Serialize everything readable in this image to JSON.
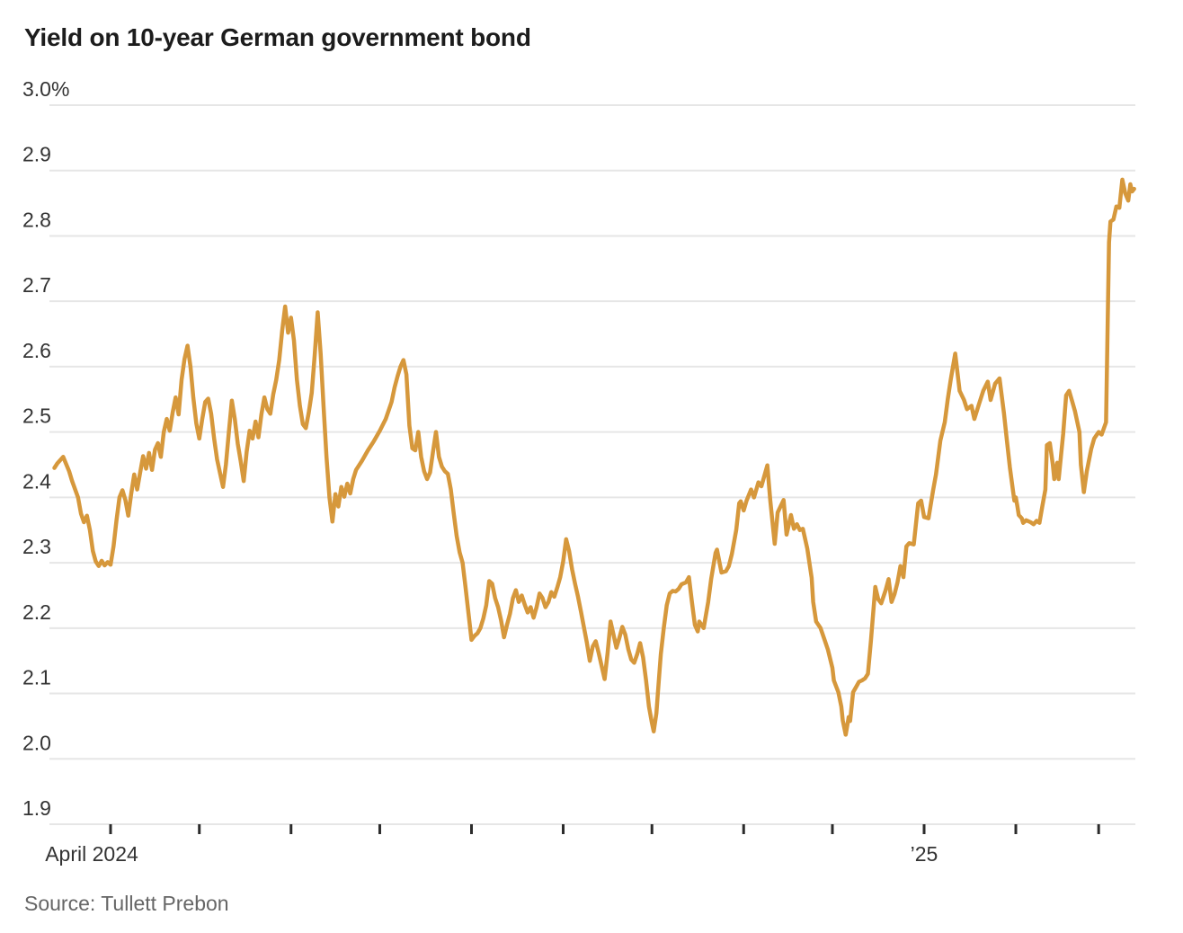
{
  "header": {
    "title": "Yield on 10-year German government bond"
  },
  "source": {
    "label": "Source: Tullett Prebon"
  },
  "chart_data": {
    "type": "line",
    "title": "Yield on 10-year German government bond",
    "series_name": "10-year German government bond yield",
    "unit": "%",
    "line_color": "#D6983C",
    "grid_color": "#E6E6E6",
    "tick_color": "#2b2b2b",
    "start_date": "2024-03-13",
    "end_date": "2025-03-13",
    "ylim": [
      1.9,
      3.0
    ],
    "grid": true,
    "legend_position": "none",
    "y_ticks": [
      {
        "value": 3.0,
        "label": "3.0%"
      },
      {
        "value": 2.9,
        "label": "2.9"
      },
      {
        "value": 2.8,
        "label": "2.8"
      },
      {
        "value": 2.7,
        "label": "2.7"
      },
      {
        "value": 2.6,
        "label": "2.6"
      },
      {
        "value": 2.5,
        "label": "2.5"
      },
      {
        "value": 2.4,
        "label": "2.4"
      },
      {
        "value": 2.3,
        "label": "2.3"
      },
      {
        "value": 2.2,
        "label": "2.2"
      },
      {
        "value": 2.1,
        "label": "2.1"
      },
      {
        "value": 2.0,
        "label": "2.0"
      },
      {
        "value": 1.9,
        "label": "1.9"
      }
    ],
    "x_ticks": [
      {
        "day": 19,
        "label": "April 2024"
      },
      {
        "day": 49,
        "label": ""
      },
      {
        "day": 80,
        "label": ""
      },
      {
        "day": 110,
        "label": ""
      },
      {
        "day": 141,
        "label": ""
      },
      {
        "day": 172,
        "label": ""
      },
      {
        "day": 202,
        "label": ""
      },
      {
        "day": 233,
        "label": ""
      },
      {
        "day": 263,
        "label": ""
      },
      {
        "day": 294,
        "label": "’25"
      },
      {
        "day": 325,
        "label": ""
      },
      {
        "day": 353,
        "label": ""
      }
    ],
    "points_format": "[days since 2024-03-13, yield %]",
    "points": [
      [
        0,
        2.445
      ],
      [
        1,
        2.452
      ],
      [
        3,
        2.462
      ],
      [
        5,
        2.44
      ],
      [
        6,
        2.425
      ],
      [
        8,
        2.4
      ],
      [
        9,
        2.375
      ],
      [
        10,
        2.362
      ],
      [
        11,
        2.372
      ],
      [
        12,
        2.35
      ],
      [
        13,
        2.318
      ],
      [
        14,
        2.302
      ],
      [
        15,
        2.295
      ],
      [
        16,
        2.303
      ],
      [
        17,
        2.296
      ],
      [
        18,
        2.301
      ],
      [
        19,
        2.297
      ],
      [
        20,
        2.325
      ],
      [
        21,
        2.365
      ],
      [
        22,
        2.4
      ],
      [
        23,
        2.411
      ],
      [
        24,
        2.396
      ],
      [
        25,
        2.372
      ],
      [
        26,
        2.406
      ],
      [
        27,
        2.435
      ],
      [
        28,
        2.412
      ],
      [
        29,
        2.438
      ],
      [
        30,
        2.463
      ],
      [
        31,
        2.444
      ],
      [
        32,
        2.468
      ],
      [
        33,
        2.442
      ],
      [
        34,
        2.473
      ],
      [
        35,
        2.483
      ],
      [
        36,
        2.462
      ],
      [
        37,
        2.5
      ],
      [
        38,
        2.52
      ],
      [
        39,
        2.502
      ],
      [
        40,
        2.53
      ],
      [
        41,
        2.553
      ],
      [
        42,
        2.527
      ],
      [
        43,
        2.58
      ],
      [
        44,
        2.612
      ],
      [
        45,
        2.632
      ],
      [
        46,
        2.6
      ],
      [
        47,
        2.552
      ],
      [
        48,
        2.513
      ],
      [
        49,
        2.49
      ],
      [
        50,
        2.52
      ],
      [
        51,
        2.546
      ],
      [
        52,
        2.551
      ],
      [
        53,
        2.528
      ],
      [
        54,
        2.49
      ],
      [
        55,
        2.458
      ],
      [
        56,
        2.437
      ],
      [
        57,
        2.416
      ],
      [
        58,
        2.45
      ],
      [
        59,
        2.5
      ],
      [
        60,
        2.548
      ],
      [
        61,
        2.52
      ],
      [
        62,
        2.482
      ],
      [
        63,
        2.455
      ],
      [
        64,
        2.425
      ],
      [
        65,
        2.47
      ],
      [
        66,
        2.502
      ],
      [
        67,
        2.49
      ],
      [
        68,
        2.516
      ],
      [
        69,
        2.492
      ],
      [
        70,
        2.527
      ],
      [
        71,
        2.553
      ],
      [
        72,
        2.535
      ],
      [
        73,
        2.528
      ],
      [
        74,
        2.558
      ],
      [
        75,
        2.58
      ],
      [
        76,
        2.61
      ],
      [
        77,
        2.655
      ],
      [
        78,
        2.692
      ],
      [
        79,
        2.652
      ],
      [
        80,
        2.675
      ],
      [
        81,
        2.64
      ],
      [
        82,
        2.58
      ],
      [
        83,
        2.54
      ],
      [
        84,
        2.512
      ],
      [
        85,
        2.506
      ],
      [
        86,
        2.53
      ],
      [
        87,
        2.56
      ],
      [
        88,
        2.618
      ],
      [
        89,
        2.683
      ],
      [
        90,
        2.62
      ],
      [
        91,
        2.54
      ],
      [
        92,
        2.462
      ],
      [
        93,
        2.4
      ],
      [
        94,
        2.363
      ],
      [
        95,
        2.405
      ],
      [
        96,
        2.386
      ],
      [
        97,
        2.416
      ],
      [
        98,
        2.401
      ],
      [
        99,
        2.421
      ],
      [
        100,
        2.406
      ],
      [
        101,
        2.428
      ],
      [
        102,
        2.442
      ],
      [
        104,
        2.456
      ],
      [
        106,
        2.472
      ],
      [
        108,
        2.486
      ],
      [
        110,
        2.502
      ],
      [
        112,
        2.52
      ],
      [
        114,
        2.546
      ],
      [
        115,
        2.568
      ],
      [
        116,
        2.585
      ],
      [
        117,
        2.6
      ],
      [
        118,
        2.61
      ],
      [
        119,
        2.588
      ],
      [
        120,
        2.51
      ],
      [
        121,
        2.475
      ],
      [
        122,
        2.472
      ],
      [
        123,
        2.5
      ],
      [
        124,
        2.462
      ],
      [
        125,
        2.44
      ],
      [
        126,
        2.428
      ],
      [
        127,
        2.438
      ],
      [
        128,
        2.47
      ],
      [
        129,
        2.5
      ],
      [
        130,
        2.462
      ],
      [
        131,
        2.447
      ],
      [
        132,
        2.44
      ],
      [
        133,
        2.436
      ],
      [
        134,
        2.412
      ],
      [
        135,
        2.376
      ],
      [
        136,
        2.341
      ],
      [
        137,
        2.316
      ],
      [
        138,
        2.3
      ],
      [
        139,
        2.262
      ],
      [
        140,
        2.222
      ],
      [
        141,
        2.182
      ],
      [
        142,
        2.188
      ],
      [
        143,
        2.192
      ],
      [
        144,
        2.2
      ],
      [
        145,
        2.215
      ],
      [
        146,
        2.235
      ],
      [
        147,
        2.272
      ],
      [
        148,
        2.268
      ],
      [
        149,
        2.246
      ],
      [
        150,
        2.232
      ],
      [
        151,
        2.212
      ],
      [
        152,
        2.186
      ],
      [
        153,
        2.205
      ],
      [
        154,
        2.222
      ],
      [
        155,
        2.246
      ],
      [
        156,
        2.258
      ],
      [
        157,
        2.24
      ],
      [
        158,
        2.25
      ],
      [
        159,
        2.236
      ],
      [
        160,
        2.224
      ],
      [
        161,
        2.232
      ],
      [
        162,
        2.216
      ],
      [
        163,
        2.232
      ],
      [
        164,
        2.253
      ],
      [
        165,
        2.246
      ],
      [
        166,
        2.232
      ],
      [
        167,
        2.24
      ],
      [
        168,
        2.255
      ],
      [
        169,
        2.248
      ],
      [
        170,
        2.262
      ],
      [
        171,
        2.278
      ],
      [
        172,
        2.302
      ],
      [
        173,
        2.336
      ],
      [
        174,
        2.318
      ],
      [
        175,
        2.29
      ],
      [
        176,
        2.268
      ],
      [
        177,
        2.248
      ],
      [
        178,
        2.225
      ],
      [
        179,
        2.202
      ],
      [
        180,
        2.178
      ],
      [
        181,
        2.15
      ],
      [
        182,
        2.172
      ],
      [
        183,
        2.18
      ],
      [
        184,
        2.162
      ],
      [
        185,
        2.142
      ],
      [
        186,
        2.122
      ],
      [
        187,
        2.162
      ],
      [
        188,
        2.21
      ],
      [
        189,
        2.19
      ],
      [
        190,
        2.17
      ],
      [
        191,
        2.185
      ],
      [
        192,
        2.202
      ],
      [
        193,
        2.19
      ],
      [
        194,
        2.168
      ],
      [
        195,
        2.152
      ],
      [
        196,
        2.147
      ],
      [
        197,
        2.16
      ],
      [
        198,
        2.177
      ],
      [
        199,
        2.155
      ],
      [
        200,
        2.12
      ],
      [
        201,
        2.08
      ],
      [
        202,
        2.055
      ],
      [
        202.6,
        2.042
      ],
      [
        203.5,
        2.07
      ],
      [
        204,
        2.1
      ],
      [
        205,
        2.16
      ],
      [
        206,
        2.2
      ],
      [
        207,
        2.235
      ],
      [
        208,
        2.253
      ],
      [
        209,
        2.257
      ],
      [
        210,
        2.256
      ],
      [
        211,
        2.26
      ],
      [
        212,
        2.267
      ],
      [
        213.5,
        2.27
      ],
      [
        214.5,
        2.278
      ],
      [
        215.5,
        2.24
      ],
      [
        216.5,
        2.205
      ],
      [
        217.5,
        2.195
      ],
      [
        218,
        2.21
      ],
      [
        219.5,
        2.2
      ],
      [
        221,
        2.24
      ],
      [
        222,
        2.275
      ],
      [
        223.5,
        2.315
      ],
      [
        224,
        2.32
      ],
      [
        225.5,
        2.285
      ],
      [
        227,
        2.287
      ],
      [
        228,
        2.295
      ],
      [
        229,
        2.313
      ],
      [
        230.5,
        2.35
      ],
      [
        231.5,
        2.391
      ],
      [
        232,
        2.394
      ],
      [
        233,
        2.38
      ],
      [
        234,
        2.395
      ],
      [
        235.5,
        2.412
      ],
      [
        236.5,
        2.4
      ],
      [
        238,
        2.423
      ],
      [
        239,
        2.417
      ],
      [
        241,
        2.449
      ],
      [
        242,
        2.395
      ],
      [
        243.5,
        2.329
      ],
      [
        244.5,
        2.377
      ],
      [
        246.5,
        2.396
      ],
      [
        247.5,
        2.343
      ],
      [
        249,
        2.373
      ],
      [
        250,
        2.352
      ],
      [
        251,
        2.359
      ],
      [
        252,
        2.35
      ],
      [
        253,
        2.352
      ],
      [
        254.5,
        2.322
      ],
      [
        256,
        2.277
      ],
      [
        256.5,
        2.24
      ],
      [
        257.5,
        2.21
      ],
      [
        259,
        2.2
      ],
      [
        260.5,
        2.18
      ],
      [
        261.5,
        2.167
      ],
      [
        263,
        2.139
      ],
      [
        263.5,
        2.12
      ],
      [
        265,
        2.102
      ],
      [
        266,
        2.08
      ],
      [
        266.5,
        2.059
      ],
      [
        267.5,
        2.037
      ],
      [
        268.5,
        2.064
      ],
      [
        269,
        2.058
      ],
      [
        270,
        2.102
      ],
      [
        270.5,
        2.106
      ],
      [
        272,
        2.118
      ],
      [
        273,
        2.12
      ],
      [
        274,
        2.123
      ],
      [
        275,
        2.13
      ],
      [
        276,
        2.18
      ],
      [
        277.5,
        2.263
      ],
      [
        278.5,
        2.244
      ],
      [
        279.5,
        2.238
      ],
      [
        281,
        2.258
      ],
      [
        282,
        2.275
      ],
      [
        283,
        2.24
      ],
      [
        284,
        2.252
      ],
      [
        285,
        2.27
      ],
      [
        286,
        2.295
      ],
      [
        287,
        2.278
      ],
      [
        288,
        2.325
      ],
      [
        289,
        2.33
      ],
      [
        290.5,
        2.328
      ],
      [
        292,
        2.391
      ],
      [
        293,
        2.395
      ],
      [
        294,
        2.37
      ],
      [
        295.5,
        2.368
      ],
      [
        297,
        2.41
      ],
      [
        298,
        2.435
      ],
      [
        299.5,
        2.487
      ],
      [
        301,
        2.515
      ],
      [
        302,
        2.55
      ],
      [
        303,
        2.58
      ],
      [
        304.5,
        2.62
      ],
      [
        306,
        2.563
      ],
      [
        307.5,
        2.549
      ],
      [
        308.5,
        2.535
      ],
      [
        310,
        2.54
      ],
      [
        311,
        2.52
      ],
      [
        312.5,
        2.542
      ],
      [
        314,
        2.563
      ],
      [
        315.5,
        2.577
      ],
      [
        316.5,
        2.549
      ],
      [
        318,
        2.574
      ],
      [
        319.5,
        2.582
      ],
      [
        321,
        2.528
      ],
      [
        322,
        2.487
      ],
      [
        323,
        2.446
      ],
      [
        324,
        2.412
      ],
      [
        324.5,
        2.395
      ],
      [
        325,
        2.4
      ],
      [
        325.5,
        2.387
      ],
      [
        326,
        2.373
      ],
      [
        327,
        2.368
      ],
      [
        327.5,
        2.361
      ],
      [
        328.5,
        2.365
      ],
      [
        330,
        2.362
      ],
      [
        331,
        2.359
      ],
      [
        332,
        2.364
      ],
      [
        333,
        2.361
      ],
      [
        334,
        2.387
      ],
      [
        335,
        2.412
      ],
      [
        335.5,
        2.48
      ],
      [
        336.5,
        2.483
      ],
      [
        337.5,
        2.45
      ],
      [
        338,
        2.428
      ],
      [
        339,
        2.453
      ],
      [
        339.5,
        2.428
      ],
      [
        341,
        2.497
      ],
      [
        342,
        2.556
      ],
      [
        343,
        2.563
      ],
      [
        344,
        2.548
      ],
      [
        345,
        2.532
      ],
      [
        346.5,
        2.5
      ],
      [
        347,
        2.45
      ],
      [
        348,
        2.408
      ],
      [
        349,
        2.44
      ],
      [
        350.5,
        2.474
      ],
      [
        351.5,
        2.49
      ],
      [
        353,
        2.5
      ],
      [
        354,
        2.496
      ],
      [
        355.5,
        2.515
      ],
      [
        356.5,
        2.79
      ],
      [
        357,
        2.822
      ],
      [
        358,
        2.825
      ],
      [
        359,
        2.845
      ],
      [
        360,
        2.843
      ],
      [
        361,
        2.886
      ],
      [
        362,
        2.865
      ],
      [
        363,
        2.854
      ],
      [
        363.7,
        2.879
      ],
      [
        364.3,
        2.868
      ],
      [
        365,
        2.872
      ]
    ]
  }
}
